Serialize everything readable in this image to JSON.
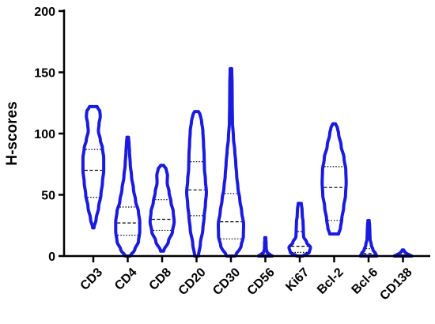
{
  "chart_data": {
    "type": "violin",
    "ylabel": "H-scores",
    "xlabel": "",
    "ylim": [
      0,
      200
    ],
    "yticks": [
      0,
      50,
      100,
      150,
      200
    ],
    "grid": false,
    "color": "#1a1ae0",
    "categories": [
      "CD3",
      "CD4",
      "CD8",
      "CD20",
      "CD30",
      "CD56",
      "Ki67",
      "Bcl-2",
      "Bcl-6",
      "CD138"
    ],
    "series": [
      {
        "category": "CD3",
        "min": 23,
        "max": 122,
        "q1": 48,
        "median": 70,
        "q3": 87,
        "profile": [
          [
            23,
            0.05
          ],
          [
            30,
            0.22
          ],
          [
            40,
            0.42
          ],
          [
            50,
            0.6
          ],
          [
            60,
            0.72
          ],
          [
            70,
            0.82
          ],
          [
            80,
            0.82
          ],
          [
            88,
            0.72
          ],
          [
            95,
            0.55
          ],
          [
            102,
            0.4
          ],
          [
            108,
            0.45
          ],
          [
            114,
            0.55
          ],
          [
            118,
            0.52
          ],
          [
            122,
            0.3
          ]
        ]
      },
      {
        "category": "CD4",
        "min": 0,
        "max": 97,
        "q1": 17,
        "median": 27,
        "q3": 40,
        "profile": [
          [
            0,
            0.2
          ],
          [
            5,
            0.55
          ],
          [
            12,
            0.85
          ],
          [
            20,
            0.95
          ],
          [
            28,
            0.95
          ],
          [
            36,
            0.85
          ],
          [
            45,
            0.62
          ],
          [
            55,
            0.45
          ],
          [
            65,
            0.3
          ],
          [
            75,
            0.2
          ],
          [
            85,
            0.14
          ],
          [
            92,
            0.1
          ],
          [
            97,
            0.06
          ]
        ]
      },
      {
        "category": "CD8",
        "min": 4,
        "max": 74,
        "q1": 21,
        "median": 30,
        "q3": 46,
        "profile": [
          [
            4,
            0.12
          ],
          [
            12,
            0.5
          ],
          [
            20,
            0.82
          ],
          [
            28,
            0.95
          ],
          [
            36,
            0.88
          ],
          [
            44,
            0.7
          ],
          [
            52,
            0.55
          ],
          [
            60,
            0.4
          ],
          [
            66,
            0.42
          ],
          [
            71,
            0.32
          ],
          [
            74,
            0.12
          ]
        ]
      },
      {
        "category": "CD20",
        "min": 0,
        "max": 118,
        "q1": 33,
        "median": 54,
        "q3": 77,
        "profile": [
          [
            0,
            0.15
          ],
          [
            10,
            0.3
          ],
          [
            22,
            0.5
          ],
          [
            32,
            0.6
          ],
          [
            42,
            0.7
          ],
          [
            52,
            0.78
          ],
          [
            62,
            0.7
          ],
          [
            72,
            0.62
          ],
          [
            82,
            0.6
          ],
          [
            92,
            0.55
          ],
          [
            102,
            0.5
          ],
          [
            110,
            0.4
          ],
          [
            115,
            0.3
          ],
          [
            118,
            0.15
          ]
        ]
      },
      {
        "category": "CD30",
        "min": 0,
        "max": 153,
        "q1": 14,
        "median": 28,
        "q3": 51,
        "profile": [
          [
            0,
            0.35
          ],
          [
            8,
            0.8
          ],
          [
            16,
            0.98
          ],
          [
            26,
            1.0
          ],
          [
            36,
            0.85
          ],
          [
            46,
            0.7
          ],
          [
            56,
            0.55
          ],
          [
            66,
            0.45
          ],
          [
            76,
            0.38
          ],
          [
            86,
            0.3
          ],
          [
            96,
            0.2
          ],
          [
            110,
            0.12
          ],
          [
            125,
            0.1
          ],
          [
            140,
            0.09
          ],
          [
            153,
            0.06
          ]
        ]
      },
      {
        "category": "CD56",
        "min": 0,
        "max": 15,
        "q1": 0,
        "median": 0,
        "q3": 1,
        "profile": [
          [
            0,
            0.55
          ],
          [
            1,
            0.38
          ],
          [
            3,
            0.14
          ],
          [
            6,
            0.07
          ],
          [
            10,
            0.06
          ],
          [
            15,
            0.04
          ]
        ]
      },
      {
        "category": "Ki67",
        "min": 0,
        "max": 43,
        "q1": 3,
        "median": 8,
        "q3": 20,
        "profile": [
          [
            0,
            0.25
          ],
          [
            3,
            0.75
          ],
          [
            7,
            0.85
          ],
          [
            11,
            0.55
          ],
          [
            16,
            0.3
          ],
          [
            22,
            0.28
          ],
          [
            28,
            0.26
          ],
          [
            33,
            0.2
          ],
          [
            38,
            0.18
          ],
          [
            43,
            0.12
          ]
        ]
      },
      {
        "category": "Bcl-2",
        "min": 18,
        "max": 108,
        "q1": 29,
        "median": 56,
        "q3": 73,
        "profile": [
          [
            18,
            0.35
          ],
          [
            23,
            0.5
          ],
          [
            30,
            0.6
          ],
          [
            40,
            0.75
          ],
          [
            50,
            0.9
          ],
          [
            60,
            0.95
          ],
          [
            70,
            0.92
          ],
          [
            80,
            0.78
          ],
          [
            90,
            0.55
          ],
          [
            100,
            0.35
          ],
          [
            105,
            0.25
          ],
          [
            108,
            0.1
          ]
        ]
      },
      {
        "category": "Bcl-6",
        "min": 0,
        "max": 29,
        "q1": 0,
        "median": 2,
        "q3": 6,
        "profile": [
          [
            0,
            0.65
          ],
          [
            2,
            0.55
          ],
          [
            5,
            0.35
          ],
          [
            9,
            0.22
          ],
          [
            14,
            0.12
          ],
          [
            20,
            0.1
          ],
          [
            25,
            0.08
          ],
          [
            29,
            0.05
          ]
        ]
      },
      {
        "category": "CD138",
        "min": 0,
        "max": 5,
        "q1": 0,
        "median": 0,
        "q3": 1,
        "profile": [
          [
            0,
            0.7
          ],
          [
            1,
            0.5
          ],
          [
            2,
            0.3
          ],
          [
            3,
            0.18
          ],
          [
            4,
            0.1
          ],
          [
            5,
            0.05
          ]
        ]
      }
    ]
  }
}
